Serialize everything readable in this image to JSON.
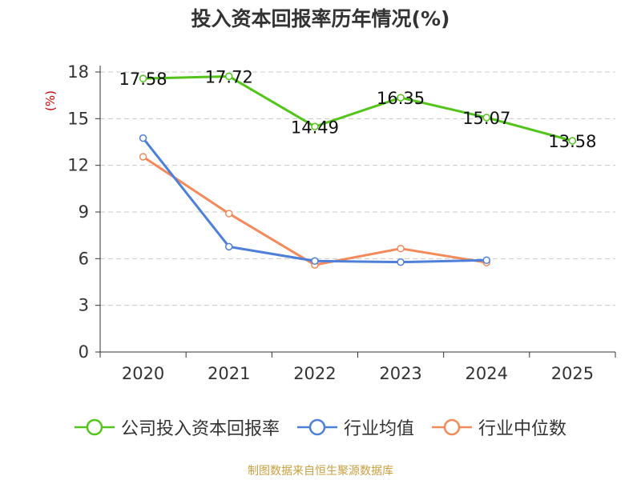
{
  "chart_data": {
    "type": "line",
    "title": "投入资本回报率历年情况(%)",
    "ylabel": "(%)",
    "xlabel": "",
    "categories": [
      "2020",
      "2021",
      "2022",
      "2023",
      "2024",
      "2025"
    ],
    "ylim": [
      0,
      18
    ],
    "yticks": [
      0,
      3,
      6,
      9,
      12,
      15,
      18
    ],
    "grid": true,
    "legend": "bottom",
    "series": [
      {
        "name": "公司投入资本回报率",
        "color": "#52c41a",
        "values": [
          17.58,
          17.72,
          14.49,
          16.35,
          15.07,
          13.58
        ],
        "show_labels": true
      },
      {
        "name": "行业均值",
        "color": "#4e7fd9",
        "values": [
          13.75,
          6.77,
          5.85,
          5.78,
          5.9,
          null
        ],
        "show_labels": false
      },
      {
        "name": "行业中位数",
        "color": "#f4895a",
        "values": [
          12.55,
          8.9,
          5.6,
          6.65,
          5.75,
          null
        ],
        "show_labels": false
      }
    ],
    "value_labels": [
      "17.58",
      "17.72",
      "14.49",
      "16.35",
      "15.07",
      "13.58"
    ]
  },
  "source": "制图数据来自恒生聚源数据库"
}
